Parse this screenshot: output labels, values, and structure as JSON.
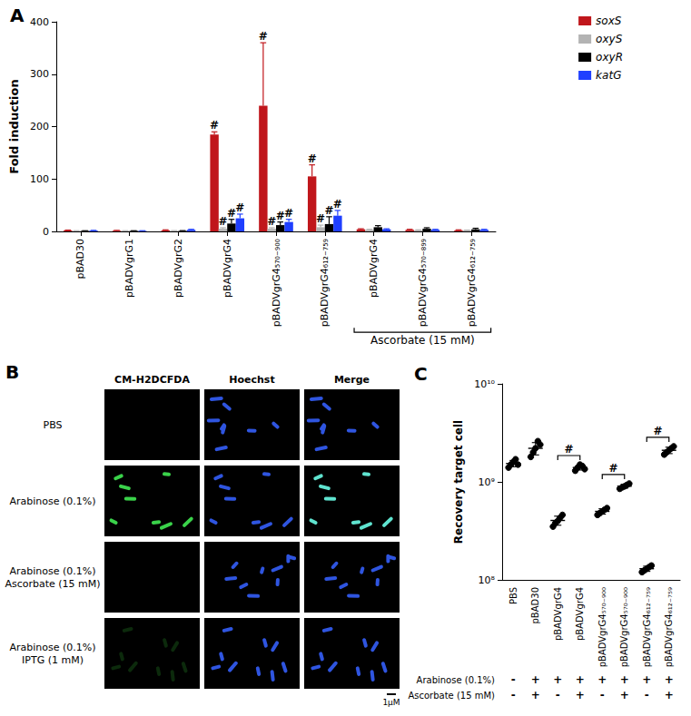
{
  "chart_data": [
    {
      "type": "bar",
      "title": "A",
      "ylabel": "Fold induction",
      "categories": [
        "pBAD30",
        "pBADVgrG1",
        "pBADVgrG2",
        "pBADVgrG4",
        "pBADVgrG4₅₇₀₋₉₀₀",
        "pBADVgrG4₆₁₂₋₇₅₉",
        "pBADVgrG4",
        "pBADVgrG4₅₇₀₋₈₉₉",
        "pBADVgrG4₆₁₂₋₇₅₉"
      ],
      "ylim": [
        0,
        400
      ],
      "yticks": [
        0,
        100,
        200,
        300,
        400
      ],
      "grid": false,
      "legend": "upper right",
      "series": [
        {
          "name": "soxS",
          "color": "#c0161b",
          "values": [
            2,
            1.5,
            2,
            185,
            240,
            105,
            4,
            3,
            2
          ],
          "errors": [
            0.5,
            0.5,
            1,
            5,
            120,
            22,
            1,
            1,
            1
          ],
          "annotations": [
            null,
            null,
            null,
            "#",
            "#",
            "#",
            null,
            null,
            null
          ]
        },
        {
          "name": "oxyS",
          "color": "#b3b3b3",
          "values": [
            1,
            1,
            1,
            5,
            5,
            8,
            3,
            2,
            2
          ],
          "errors": [
            0.3,
            0.3,
            0.5,
            2,
            2,
            4,
            1,
            1,
            0.5
          ],
          "annotations": [
            null,
            null,
            null,
            "#",
            "#",
            "#",
            null,
            null,
            null
          ]
        },
        {
          "name": "oxyR",
          "color": "#000000",
          "values": [
            1,
            1,
            1,
            15,
            12,
            14,
            8,
            5,
            4
          ],
          "errors": [
            0.3,
            0.3,
            0.5,
            8,
            6,
            14,
            3,
            2,
            2
          ],
          "annotations": [
            null,
            null,
            null,
            "#",
            "#",
            "#",
            null,
            null,
            null
          ]
        },
        {
          "name": "katG",
          "color": "#1f3fff",
          "values": [
            1.5,
            1,
            3,
            25,
            18,
            30,
            4,
            3,
            3
          ],
          "errors": [
            0.5,
            0.3,
            1,
            8,
            5,
            10,
            1,
            1,
            1
          ],
          "annotations": [
            null,
            null,
            null,
            "#",
            "#",
            "#",
            null,
            null,
            null
          ]
        }
      ],
      "group_annotations": [
        {
          "label": "Ascorbate (15 mM)",
          "from": 6,
          "to": 8
        }
      ]
    },
    {
      "type": "scatter",
      "title": "C",
      "ylabel": "Recovery target cell",
      "categories": [
        "PBS",
        "pBAD30",
        "pBADVgrG4",
        "pBADVgrG4",
        "pBADVgrG4₅₇₀₋₉₀₀",
        "pBADVgrG4₅₇₀₋₉₀₀",
        "pBADVgrG4₆₁₂₋₇₅₉",
        "pBADVgrG4₆₁₂₋₇₅₉"
      ],
      "log": "y",
      "ylim": [
        100000000,
        10000000000
      ],
      "yticks": [
        {
          "value": 100000000,
          "label": "10⁸"
        },
        {
          "value": 1000000000,
          "label": "10⁹"
        },
        {
          "value": 10000000000,
          "label": "10¹⁰"
        }
      ],
      "grid": false,
      "color": "#000000",
      "values": [
        [
          1400000000,
          1500000000,
          1600000000,
          1700000000,
          1500000000
        ],
        [
          1800000000,
          2000000000,
          2200000000,
          2600000000,
          2400000000
        ],
        [
          350000000,
          380000000,
          400000000,
          430000000,
          460000000
        ],
        [
          1300000000,
          1400000000,
          1500000000,
          1450000000,
          1350000000
        ],
        [
          460000000,
          480000000,
          500000000,
          520000000,
          540000000
        ],
        [
          850000000,
          880000000,
          900000000,
          930000000,
          960000000
        ],
        [
          120000000,
          125000000,
          130000000,
          135000000,
          140000000
        ],
        [
          1900000000,
          2000000000,
          2100000000,
          2200000000,
          2300000000
        ]
      ],
      "conditions": [
        {
          "label": "Arabinose (0.1%)",
          "values": [
            "-",
            "+",
            "+",
            "+",
            "+",
            "+",
            "+",
            "+"
          ]
        },
        {
          "label": "Ascorbate (15 mM)",
          "values": [
            "-",
            "+",
            "-",
            "+",
            "-",
            "+",
            "-",
            "+"
          ]
        }
      ],
      "comparisons": [
        {
          "from": 2,
          "to": 3,
          "label": "#"
        },
        {
          "from": 4,
          "to": 5,
          "label": "#"
        },
        {
          "from": 6,
          "to": 7,
          "label": "#"
        }
      ]
    }
  ],
  "panel_b": {
    "title": "B",
    "columns": [
      "CM-H2DCFDA",
      "Hoechst",
      "Merge"
    ],
    "rows": [
      [
        "PBS"
      ],
      [
        "Arabinose (0.1%)"
      ],
      [
        "Arabinose (0.1%)",
        "Ascorbate (15 mM)"
      ],
      [
        "Arabinose (0.1%)",
        "IPTG (1 mM)"
      ]
    ],
    "scale_bar": "1μM"
  }
}
